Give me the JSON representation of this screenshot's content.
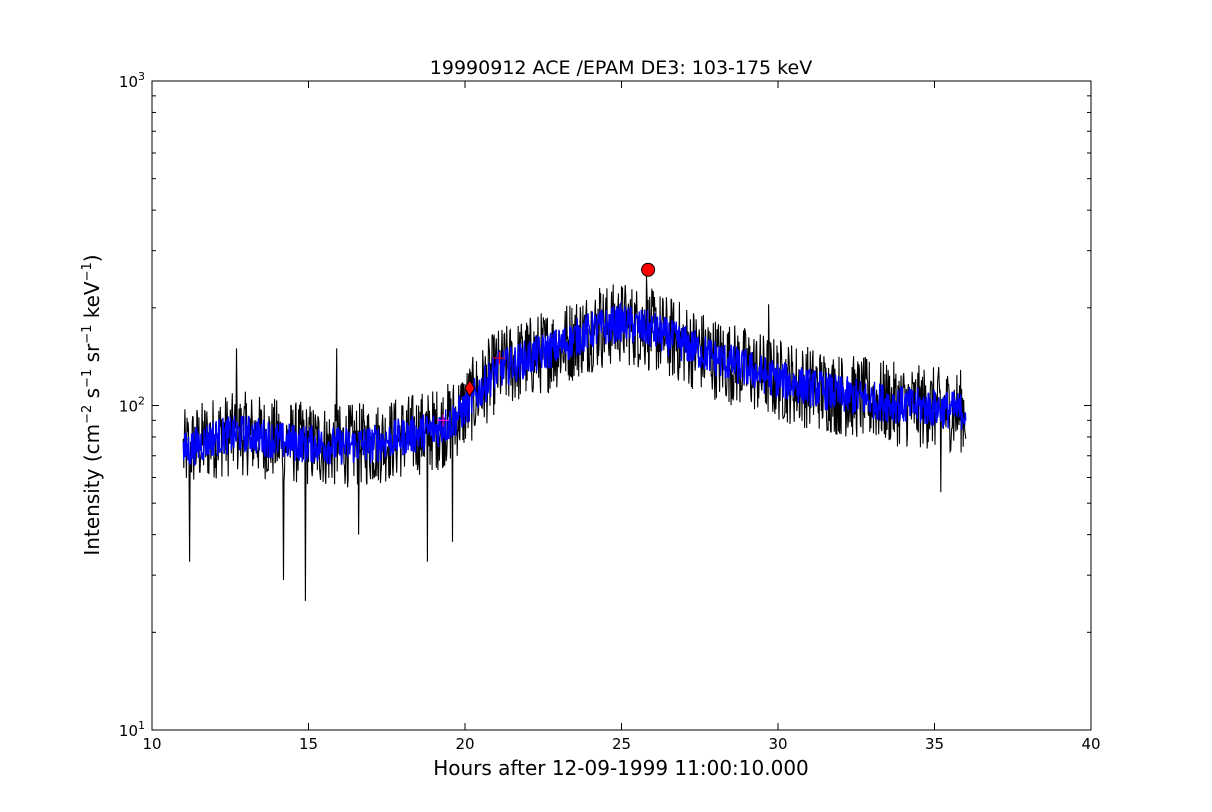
{
  "chart_data": {
    "type": "line",
    "title": "19990912 ACE /EPAM DE3: 103-175 keV",
    "xlabel": "Hours after 12-09-1999 11:00:10.000",
    "ylabel": {
      "prefix": "Intensity (cm",
      "exp1": "−2",
      "mid1": " s",
      "exp2": "−1",
      "mid2": " sr",
      "exp3": "−1",
      "mid3": " keV",
      "exp4": "−1",
      "suffix": ")"
    },
    "xlim": [
      10,
      40
    ],
    "ylim": [
      10,
      1000
    ],
    "yscale": "log",
    "grid": false,
    "x_ticks": [
      "10",
      "15",
      "20",
      "25",
      "30",
      "35",
      "40"
    ],
    "y_ticks": [
      {
        "base": "10",
        "exp": "1"
      },
      {
        "base": "10",
        "exp": "2"
      },
      {
        "base": "10",
        "exp": "3"
      }
    ],
    "x_range": [
      11.0,
      36.0
    ],
    "series": [
      {
        "color": "#000000",
        "style": "raw-noisy",
        "trend": [
          [
            11.0,
            72
          ],
          [
            12.0,
            80
          ],
          [
            13.0,
            82
          ],
          [
            14.0,
            78
          ],
          [
            15.0,
            76
          ],
          [
            16.0,
            75
          ],
          [
            17.0,
            76
          ],
          [
            18.0,
            80
          ],
          [
            19.0,
            84
          ],
          [
            19.5,
            88
          ],
          [
            20.0,
            98
          ],
          [
            20.5,
            112
          ],
          [
            21.0,
            128
          ],
          [
            22.0,
            140
          ],
          [
            23.0,
            152
          ],
          [
            24.0,
            170
          ],
          [
            25.0,
            180
          ],
          [
            26.0,
            170
          ],
          [
            27.0,
            155
          ],
          [
            28.0,
            140
          ],
          [
            29.0,
            130
          ],
          [
            30.0,
            120
          ],
          [
            31.0,
            114
          ],
          [
            32.0,
            108
          ],
          [
            33.0,
            104
          ],
          [
            34.0,
            100
          ],
          [
            35.0,
            98
          ],
          [
            36.0,
            96
          ]
        ],
        "spread": 0.26,
        "spikes_low": [
          [
            11.2,
            33
          ],
          [
            14.2,
            29
          ],
          [
            14.9,
            25
          ],
          [
            16.6,
            40
          ],
          [
            18.8,
            33
          ],
          [
            19.6,
            38
          ],
          [
            35.2,
            54
          ]
        ],
        "spikes_high": [
          [
            12.7,
            150
          ],
          [
            15.9,
            150
          ],
          [
            24.3,
            230
          ],
          [
            25.8,
            250
          ],
          [
            29.7,
            205
          ]
        ]
      },
      {
        "color": "#0000ff",
        "style": "smoothed",
        "trend": [
          [
            11.0,
            72
          ],
          [
            12.0,
            80
          ],
          [
            13.0,
            82
          ],
          [
            14.0,
            78
          ],
          [
            15.0,
            76
          ],
          [
            16.0,
            75
          ],
          [
            17.0,
            76
          ],
          [
            18.0,
            80
          ],
          [
            19.0,
            84
          ],
          [
            19.5,
            88
          ],
          [
            20.0,
            98
          ],
          [
            20.5,
            112
          ],
          [
            21.0,
            128
          ],
          [
            22.0,
            140
          ],
          [
            23.0,
            152
          ],
          [
            24.0,
            170
          ],
          [
            25.0,
            180
          ],
          [
            26.0,
            170
          ],
          [
            27.0,
            155
          ],
          [
            28.0,
            140
          ],
          [
            29.0,
            130
          ],
          [
            30.0,
            120
          ],
          [
            31.0,
            114
          ],
          [
            32.0,
            108
          ],
          [
            33.0,
            104
          ],
          [
            34.0,
            100
          ],
          [
            35.0,
            98
          ],
          [
            36.0,
            96
          ]
        ],
        "spread": 0.12
      }
    ],
    "markers": [
      {
        "type": "plus",
        "x": 19.3,
        "y": 90,
        "color": "#ff00ff"
      },
      {
        "type": "diamond",
        "x": 20.15,
        "y": 113,
        "color": "#ff0000"
      },
      {
        "type": "plus",
        "x": 21.1,
        "y": 140,
        "color": "#ff0000"
      },
      {
        "type": "circle",
        "x": 25.85,
        "y": 262,
        "color": "#ff0000"
      }
    ]
  }
}
